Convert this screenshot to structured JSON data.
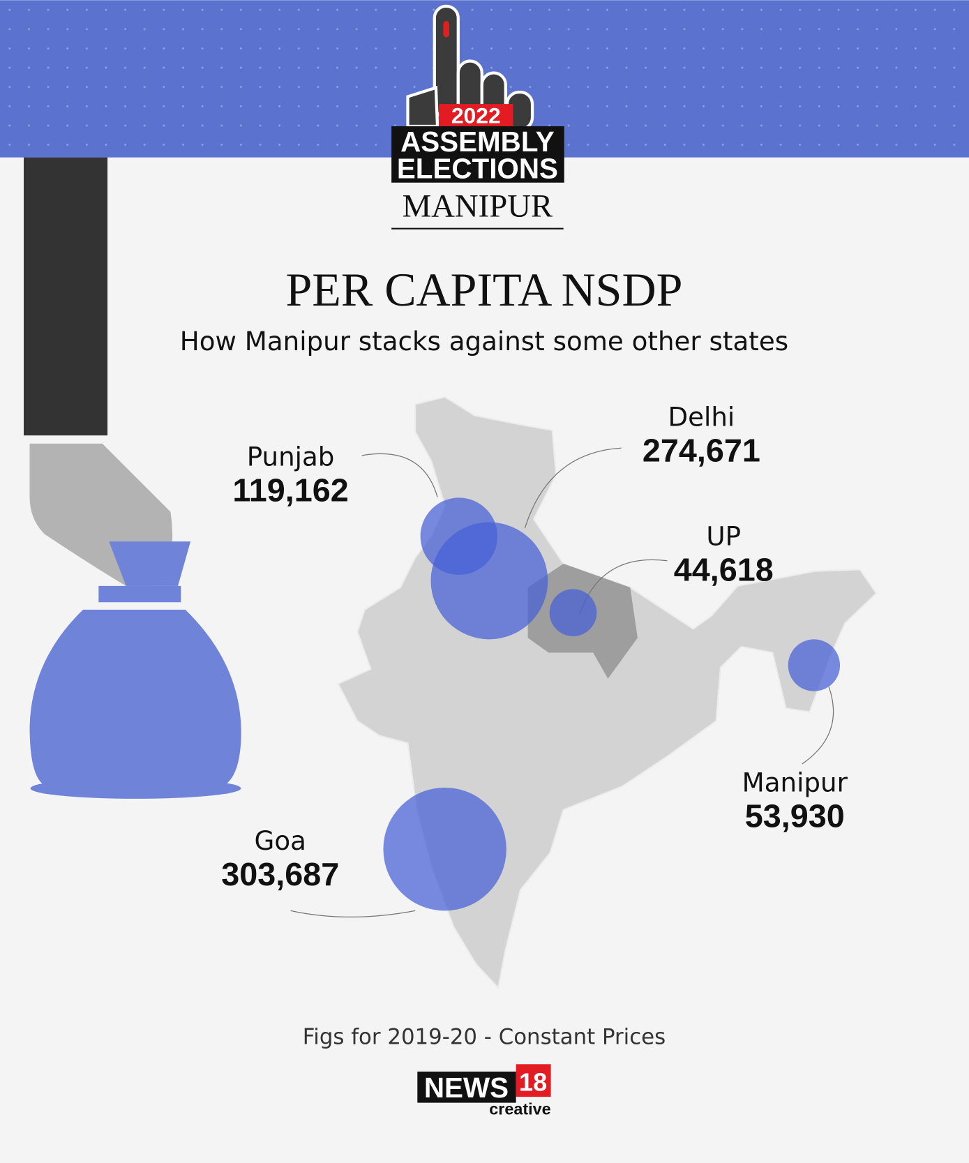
{
  "header": {
    "year": "2022",
    "line1": "ASSEMBLY",
    "line2": "ELECTIONS",
    "state": "MANIPUR"
  },
  "title": "PER CAPITA NSDP",
  "subtitle": "How Manipur stacks against some other states",
  "states": [
    {
      "name": "Punjab",
      "value": 119162,
      "label": "119,162"
    },
    {
      "name": "Delhi",
      "value": 274671,
      "label": "274,671"
    },
    {
      "name": "UP",
      "value": 44618,
      "label": "44,618"
    },
    {
      "name": "Manipur",
      "value": 53930,
      "label": "53,930"
    },
    {
      "name": "Goa",
      "value": 303687,
      "label": "303,687"
    }
  ],
  "footnote": "Figs for 2019-20 - Constant Prices",
  "logo": {
    "brand": "NEWS",
    "number": "18",
    "tag": "creative"
  }
}
